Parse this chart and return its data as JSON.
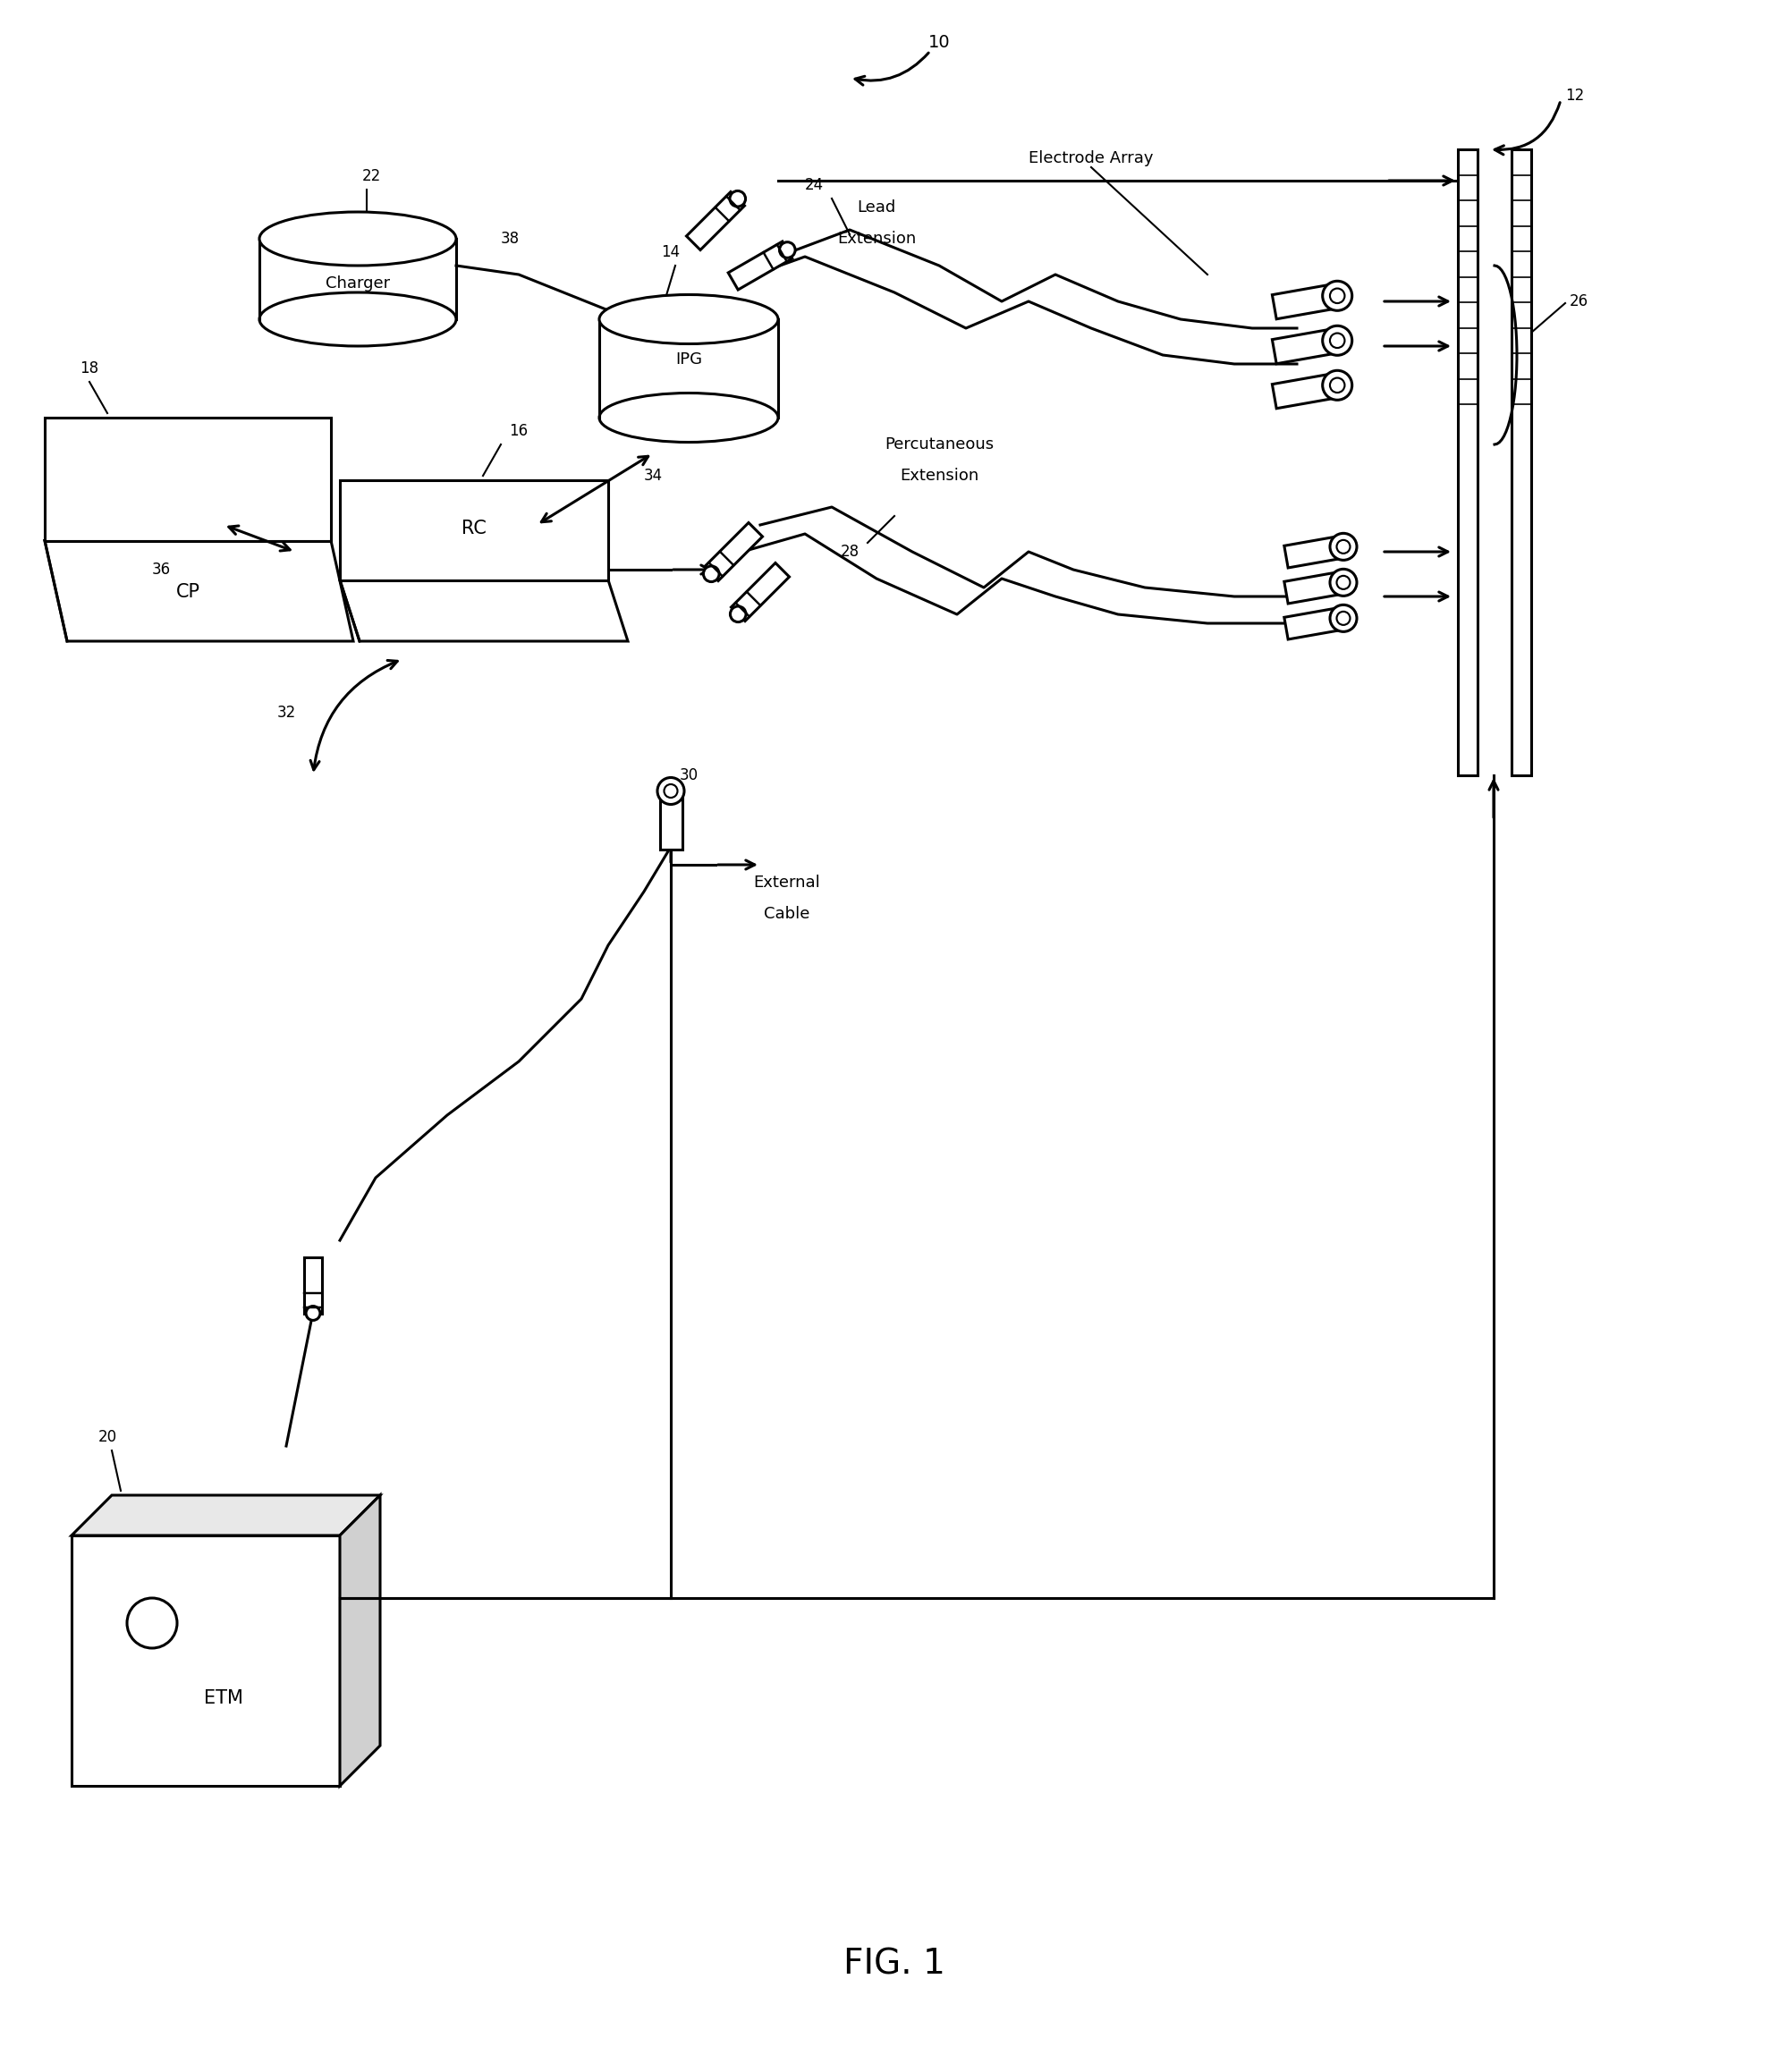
{
  "title": "FIG. 1",
  "bg_color": "#ffffff",
  "line_color": "#000000",
  "fig_label": "FIG. 1",
  "components": {
    "ref_10": "10",
    "ref_12": "12",
    "ref_14": "14",
    "ref_16": "16",
    "ref_18": "18",
    "ref_20": "20",
    "ref_22": "22",
    "ref_24": "24",
    "ref_26": "26",
    "ref_28": "28",
    "ref_30": "30",
    "ref_32": "32",
    "ref_34": "34",
    "ref_36": "36",
    "ref_38": "38"
  },
  "labels": {
    "charger": "Charger",
    "ipg": "IPG",
    "cp": "CP",
    "rc": "RC",
    "etm": "ETM",
    "lead_ext": "Lead\nExtension",
    "electrode_array": "Electrode Array",
    "percutaneous_ext": "Percutaneous\nExtension",
    "external_cable": "External\nCable"
  }
}
